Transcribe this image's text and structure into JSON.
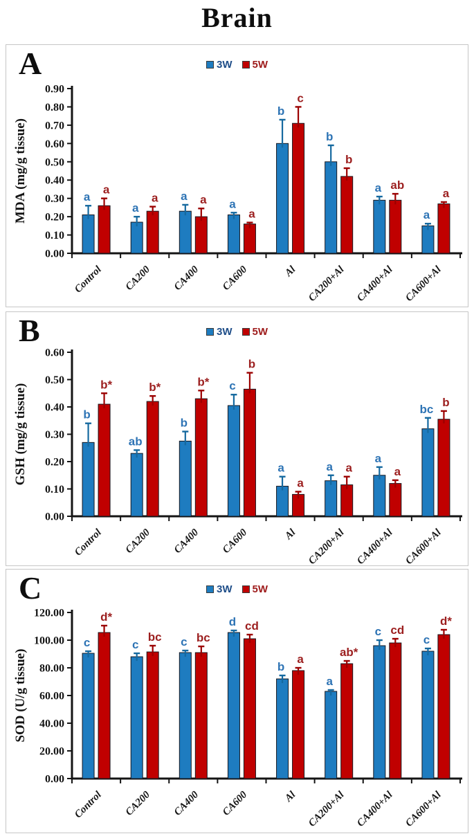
{
  "figure_title": "Brain",
  "legend": {
    "items": [
      {
        "label": "3W",
        "swatch_color": "#1E7CC0",
        "label_color": "#1F4E89"
      },
      {
        "label": "5W",
        "swatch_color": "#C00000",
        "label_color": "#9E1B1B"
      }
    ]
  },
  "colors": {
    "bar_blue": "#1E7CC0",
    "bar_red": "#C00000",
    "bar_outline": "#17171f",
    "err_blue": "#15699F",
    "err_red": "#9B0000",
    "letter_blue": "#2E74B5",
    "letter_red": "#9C1F1F",
    "axis": "#141414"
  },
  "chart_data": [
    {
      "panel": "A",
      "type": "bar",
      "title": "",
      "ylabel": "MDA (mg/g tissue)",
      "ylim": [
        0,
        0.9
      ],
      "ystep": 0.1,
      "y_tick_decimals": 2,
      "grid": false,
      "legend_position": "top-center",
      "categories": [
        "Control",
        "CA200",
        "CA400",
        "CA600",
        "Al",
        "CA200+Al",
        "CA400+Al",
        "CA600+Al"
      ],
      "series": [
        {
          "name": "3W",
          "values": [
            0.21,
            0.17,
            0.23,
            0.21,
            0.6,
            0.5,
            0.29,
            0.15
          ],
          "errors": [
            0.05,
            0.03,
            0.035,
            0.012,
            0.13,
            0.09,
            0.02,
            0.012
          ],
          "letters": [
            "a",
            "a",
            "a",
            "a",
            "b",
            "b",
            "a",
            "a"
          ]
        },
        {
          "name": "5W",
          "values": [
            0.26,
            0.23,
            0.2,
            0.16,
            0.71,
            0.42,
            0.29,
            0.27
          ],
          "errors": [
            0.04,
            0.025,
            0.045,
            0.008,
            0.09,
            0.045,
            0.035,
            0.01
          ],
          "letters": [
            "a",
            "a",
            "a",
            "a",
            "c",
            "b",
            "ab",
            "a"
          ]
        }
      ]
    },
    {
      "panel": "B",
      "type": "bar",
      "title": "",
      "ylabel": "GSH (mg/g tissue)",
      "ylim": [
        0,
        0.6
      ],
      "ystep": 0.1,
      "y_tick_decimals": 2,
      "grid": false,
      "legend_position": "top-center",
      "categories": [
        "Control",
        "CA200",
        "CA400",
        "CA600",
        "Al",
        "CA200+Al",
        "CA400+Al",
        "CA600+Al"
      ],
      "series": [
        {
          "name": "3W",
          "values": [
            0.27,
            0.23,
            0.275,
            0.405,
            0.11,
            0.13,
            0.15,
            0.32
          ],
          "errors": [
            0.07,
            0.012,
            0.035,
            0.04,
            0.035,
            0.02,
            0.03,
            0.04
          ],
          "letters": [
            "b",
            "ab",
            "b",
            "c",
            "a",
            "a",
            "a",
            "bc"
          ]
        },
        {
          "name": "5W",
          "values": [
            0.41,
            0.42,
            0.43,
            0.465,
            0.08,
            0.115,
            0.12,
            0.355
          ],
          "errors": [
            0.04,
            0.02,
            0.03,
            0.06,
            0.01,
            0.03,
            0.012,
            0.03
          ],
          "letters": [
            "b*",
            "b*",
            "b*",
            "b",
            "a",
            "a",
            "a",
            "b"
          ]
        }
      ]
    },
    {
      "panel": "C",
      "type": "bar",
      "title": "",
      "ylabel": "SOD (U/g tissue)",
      "ylim": [
        0,
        120
      ],
      "ystep": 20,
      "y_tick_decimals": 2,
      "grid": false,
      "legend_position": "top-center",
      "categories": [
        "Control",
        "CA200",
        "CA400",
        "CA600",
        "Al",
        "CA200+Al",
        "CA400+Al",
        "CA600+Al"
      ],
      "series": [
        {
          "name": "3W",
          "values": [
            90.5,
            88,
            91,
            105.5,
            72,
            63,
            96,
            92
          ],
          "errors": [
            1.5,
            2.5,
            1.5,
            1.5,
            2.5,
            1,
            4,
            2
          ],
          "letters": [
            "c",
            "c",
            "c",
            "d",
            "b",
            "a",
            "c",
            "c"
          ]
        },
        {
          "name": "5W",
          "values": [
            105.5,
            91.5,
            91,
            101,
            78,
            83,
            98,
            104
          ],
          "errors": [
            5,
            4.5,
            4.5,
            3,
            2,
            2,
            3,
            3.5
          ],
          "letters": [
            "d*",
            "bc",
            "bc",
            "cd",
            "a",
            "ab*",
            "cd",
            "d*"
          ]
        }
      ]
    }
  ]
}
